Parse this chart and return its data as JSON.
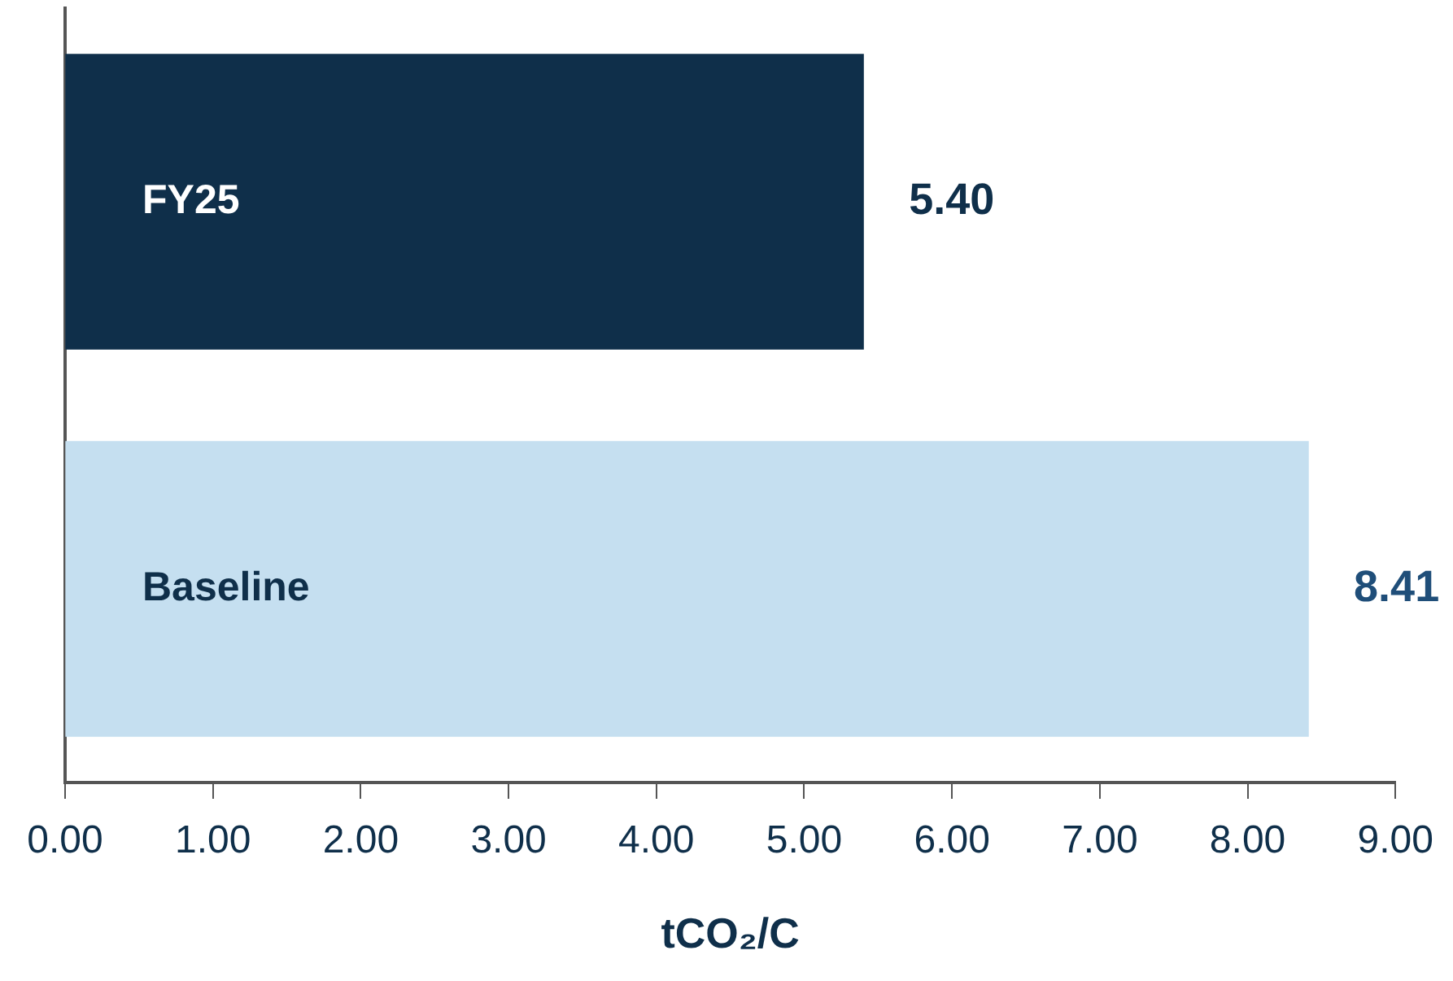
{
  "chart_data": {
    "type": "bar",
    "orientation": "horizontal",
    "categories": [
      "FY25",
      "Baseline"
    ],
    "values": [
      5.4,
      8.41
    ],
    "colors": [
      "#0f2f4a",
      "#c5dff0"
    ],
    "value_labels": [
      "5.40",
      "8.41"
    ],
    "xlabel": "tCO₂/C",
    "xlim": [
      0,
      9
    ],
    "xticks": [
      {
        "value": 0,
        "label": "0.00"
      },
      {
        "value": 1,
        "label": "1.00"
      },
      {
        "value": 2,
        "label": "2.00"
      },
      {
        "value": 3,
        "label": "3.00"
      },
      {
        "value": 4,
        "label": "4.00"
      },
      {
        "value": 5,
        "label": "5.00"
      },
      {
        "value": 6,
        "label": "6.00"
      },
      {
        "value": 7,
        "label": "7.00"
      },
      {
        "value": 8,
        "label": "8.00"
      },
      {
        "value": 9,
        "label": "9.00"
      }
    ]
  }
}
